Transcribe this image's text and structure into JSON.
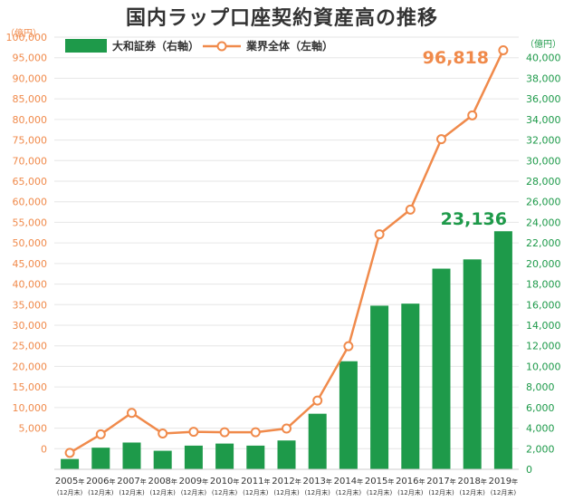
{
  "title": "国内ラップ口座契約資産高の推移",
  "chart_data": {
    "type": "bar+line",
    "title": "国内ラップ口座契約資産高の推移",
    "left_unit": "（億円）",
    "right_unit": "（億円）",
    "categories": [
      "2005",
      "2006",
      "2007",
      "2008",
      "2009",
      "2010",
      "2011",
      "2012",
      "2013",
      "2014",
      "2015",
      "2016",
      "2017",
      "2018",
      "2019"
    ],
    "year_suffix": "年",
    "category_sub": "(12月末)",
    "left_axis": {
      "min": -5000,
      "max": 100000,
      "step": 5000,
      "tick_labels": [
        "100,000",
        "95,000",
        "90,000",
        "85,000",
        "80,000",
        "75,000",
        "70,000",
        "65,000",
        "60,000",
        "55,000",
        "50,000",
        "45,000",
        "40,000",
        "35,000",
        "30,000",
        "25,000",
        "20,000",
        "15,000",
        "10,000",
        "5,000",
        "0"
      ]
    },
    "right_axis": {
      "min": 0,
      "max": 42000,
      "step": 2000,
      "tick_labels": [
        "40,000",
        "38,000",
        "36,000",
        "34,000",
        "32,000",
        "30,000",
        "28,000",
        "26,000",
        "24,000",
        "22,000",
        "20,000",
        "18,000",
        "16,000",
        "14,000",
        "12,000",
        "10,000",
        "8,000",
        "6,000",
        "4,000",
        "2,000",
        "0"
      ]
    },
    "series": [
      {
        "name": "大和証券（右軸）",
        "type": "bar",
        "axis": "right",
        "color": "#1e9a4a",
        "values": [
          1000,
          2100,
          2600,
          1800,
          2300,
          2500,
          2300,
          2800,
          5400,
          10500,
          15900,
          16100,
          19500,
          20400,
          23136
        ]
      },
      {
        "name": "業界全体（左軸）",
        "type": "line",
        "axis": "left",
        "color": "#f08a4b",
        "values": [
          -1000,
          3500,
          8700,
          3700,
          4100,
          4000,
          4000,
          4900,
          11700,
          24900,
          52100,
          58100,
          75200,
          81000,
          96818
        ]
      }
    ],
    "annotations": {
      "line_last": "96,818",
      "bar_last": "23,136"
    },
    "legend_position": "top-left",
    "grid": true
  }
}
